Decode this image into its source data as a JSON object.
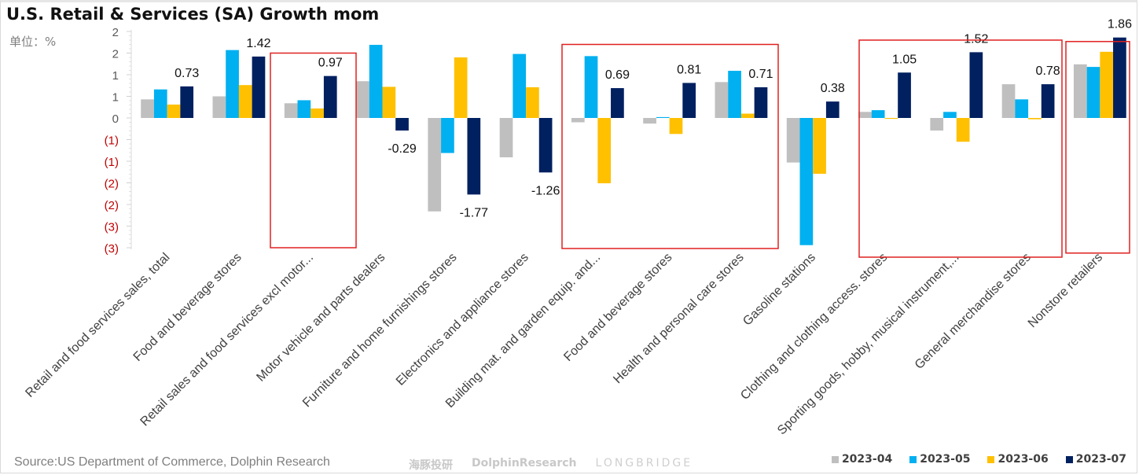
{
  "title": "U.S. Retail & Services (SA) Growth mom",
  "unit_label": "单位：%",
  "source": "Source:US Department of Commerce, Dolphin Research",
  "watermark": {
    "cn": "海豚投研",
    "en": "DolphinResearch",
    "brand": "LONGBRIDGE"
  },
  "chart_data": {
    "type": "bar",
    "title": "U.S. Retail & Services (SA) Growth mom",
    "ylabel": "单位：%",
    "ylim": [
      -3,
      2
    ],
    "ytick_values": [
      2,
      1.5,
      1,
      0.5,
      0,
      -0.5,
      -1,
      -1.5,
      -2,
      -2.5,
      -3
    ],
    "ytick_labels": [
      "2",
      "2",
      "1",
      "1",
      "0",
      "(1)",
      "(1)",
      "(2)",
      "(2)",
      "(3)",
      "(3)"
    ],
    "negative_tick_color": "#c00000",
    "grid": false,
    "legend_position": "bottom-right",
    "categories": [
      "Retail and food services sales, total",
      "Food and beverage stores",
      "Retail sales and food services excl motor...",
      "Motor vehicle and parts dealers",
      "Furniture and home furnishings stores",
      "Electronics and appliance stores",
      "Building mat. and garden equip. and...",
      "Food and beverage stores",
      "Health and personal care stores",
      "Gasoline stations",
      "Clothing and clothing access. stores",
      "Sporting goods, hobby, musical instrument,...",
      "General merchandise stores",
      "Nonstore retailers"
    ],
    "series": [
      {
        "name": "2023-04",
        "color": "#bfbfbf",
        "values": [
          0.43,
          0.5,
          0.34,
          0.85,
          -2.16,
          -0.91,
          -0.1,
          -0.13,
          0.83,
          -1.03,
          0.14,
          -0.29,
          0.78,
          1.24
        ]
      },
      {
        "name": "2023-05",
        "color": "#00b0f0",
        "values": [
          0.66,
          1.57,
          0.41,
          1.69,
          -0.81,
          1.48,
          1.43,
          0.02,
          1.09,
          -2.94,
          0.18,
          0.14,
          0.43,
          1.18
        ]
      },
      {
        "name": "2023-06",
        "color": "#ffc000",
        "values": [
          0.31,
          0.76,
          0.22,
          0.72,
          1.4,
          0.71,
          -1.51,
          -0.37,
          0.1,
          -1.29,
          -0.02,
          -0.55,
          -0.03,
          1.53
        ]
      },
      {
        "name": "2023-07",
        "color": "#002060",
        "values": [
          0.73,
          1.42,
          0.97,
          -0.29,
          -1.77,
          -1.26,
          0.69,
          0.81,
          0.71,
          0.38,
          1.05,
          1.52,
          0.78,
          1.86
        ]
      }
    ],
    "data_labels_series": "2023-07",
    "data_labels": [
      "0.73",
      "1.42",
      "0.97",
      "-0.29",
      "-1.77",
      "-1.26",
      "0.69",
      "0.81",
      "0.71",
      "0.38",
      "1.05",
      "1.52",
      "0.78",
      "1.86"
    ],
    "highlight_groups": [
      [
        2,
        2
      ],
      [
        6,
        8
      ],
      [
        10,
        12
      ],
      [
        13,
        13
      ]
    ],
    "highlight_color": "#e02020"
  }
}
